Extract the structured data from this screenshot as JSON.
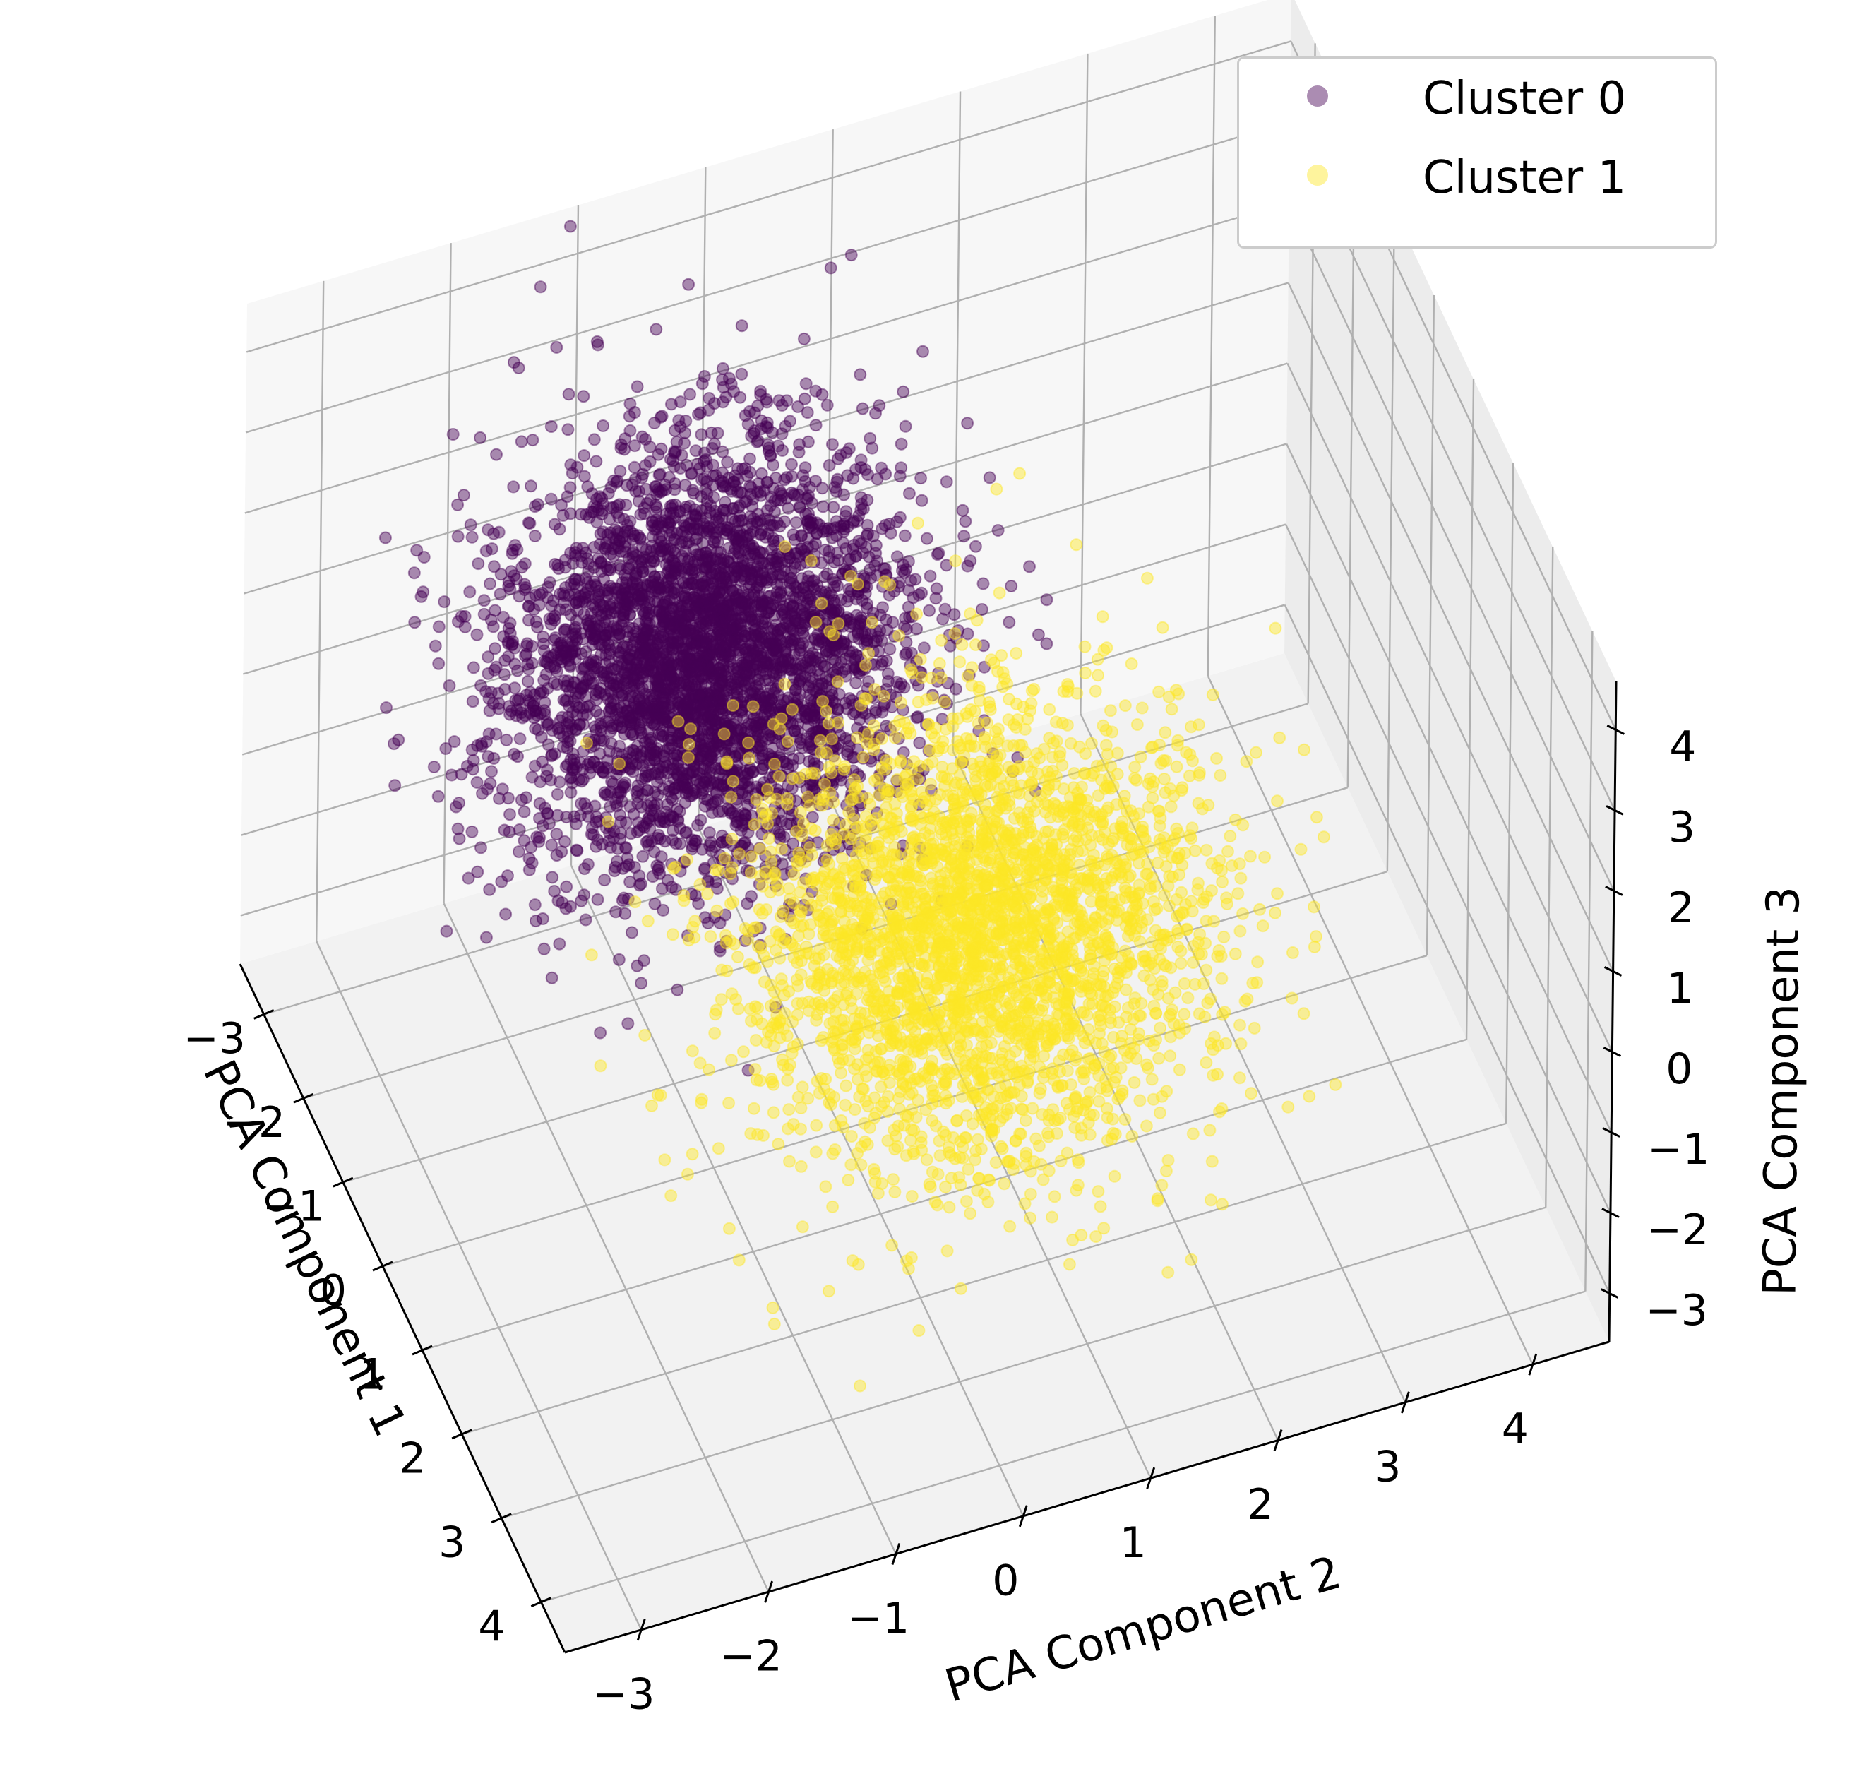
{
  "chart_data": {
    "type": "scatter",
    "projection": "3d",
    "title": "",
    "xlabel": "PCA Component 1",
    "ylabel": "PCA Component 2",
    "zlabel": "PCA Component 3",
    "xlim": [
      -3.6,
      4.6
    ],
    "ylim": [
      -3.6,
      4.6
    ],
    "zlim": [
      -3.6,
      4.6
    ],
    "x_ticks": [
      -3,
      -2,
      -1,
      0,
      1,
      2,
      3,
      4
    ],
    "y_ticks": [
      -3,
      -2,
      -1,
      0,
      1,
      2,
      3,
      4
    ],
    "z_ticks": [
      -3,
      -2,
      -1,
      0,
      1,
      2,
      3,
      4
    ],
    "x_tick_labels": [
      "−3",
      "−2",
      "−1",
      "0",
      "1",
      "2",
      "3",
      "4"
    ],
    "y_tick_labels": [
      "−3",
      "−2",
      "−1",
      "0",
      "1",
      "2",
      "3",
      "4"
    ],
    "z_tick_labels": [
      "−3",
      "−2",
      "−1",
      "0",
      "1",
      "2",
      "3",
      "4"
    ],
    "grid": true,
    "legend_position": "top-right",
    "series": [
      {
        "name": "Cluster 0",
        "color": "#440154",
        "alpha": 0.45,
        "count": 4200,
        "center": [
          -0.9,
          -0.8,
          1.7
        ],
        "spread": [
          0.8,
          0.75,
          0.95
        ]
      },
      {
        "name": "Cluster 1",
        "color": "#fde725",
        "alpha": 0.45,
        "count": 3300,
        "center": [
          0.9,
          0.8,
          -0.6
        ],
        "spread": [
          0.95,
          0.85,
          1.0
        ]
      }
    ]
  }
}
